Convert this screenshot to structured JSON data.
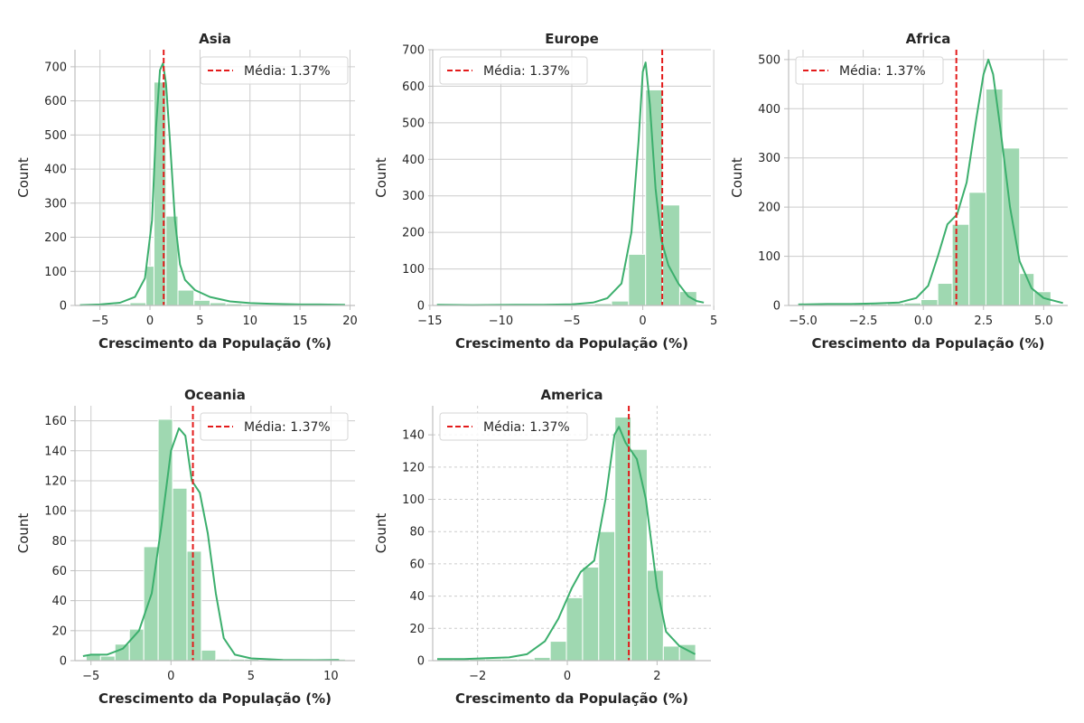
{
  "colors": {
    "bar": "#9fd8b1",
    "kde": "#3caf6d",
    "mean": "#e31b1b",
    "grid": "#cccccc",
    "axis": "#bdbdbd"
  },
  "chart_data": [
    {
      "type": "bar",
      "title": "Asia",
      "xlabel": "Crescimento da População (%)",
      "ylabel": "Count",
      "xlim": [
        -7.5,
        20.5
      ],
      "ylim": [
        0,
        750
      ],
      "xticks": [
        -5,
        0,
        5,
        10,
        15,
        20
      ],
      "yticks": [
        0,
        100,
        200,
        300,
        400,
        500,
        600,
        700
      ],
      "grid": "solid",
      "bin_edges": [
        -6.8,
        -5.2,
        -3.6,
        -2.0,
        -0.4,
        0.4,
        1.6,
        2.8,
        4.4,
        6.0,
        7.6,
        9.2,
        10.8,
        12.4,
        14.0,
        15.6,
        17.2,
        18.8,
        19.6
      ],
      "counts": [
        2,
        3,
        4,
        8,
        115,
        655,
        262,
        45,
        15,
        8,
        5,
        3,
        2,
        2,
        2,
        2,
        2,
        2
      ],
      "kde": [
        [
          -7,
          1
        ],
        [
          -5,
          3
        ],
        [
          -3,
          8
        ],
        [
          -1.5,
          25
        ],
        [
          -0.5,
          80
        ],
        [
          0.2,
          250
        ],
        [
          0.6,
          520
        ],
        [
          1.0,
          690
        ],
        [
          1.3,
          710
        ],
        [
          1.6,
          650
        ],
        [
          2.0,
          480
        ],
        [
          2.5,
          250
        ],
        [
          3.0,
          120
        ],
        [
          3.5,
          75
        ],
        [
          4.5,
          45
        ],
        [
          6,
          25
        ],
        [
          8,
          12
        ],
        [
          10,
          7
        ],
        [
          12,
          5
        ],
        [
          15,
          3
        ],
        [
          17,
          3
        ],
        [
          19.5,
          2
        ]
      ],
      "mean": 1.37,
      "legend": "Média: 1.37%",
      "legend_loc": "upper right"
    },
    {
      "type": "bar",
      "title": "Europe",
      "xlabel": "Crescimento da População (%)",
      "ylabel": "Count",
      "xlim": [
        -14.8,
        4.8
      ],
      "ylim": [
        0,
        700
      ],
      "xticks": [
        -15,
        -10,
        -5,
        0,
        5
      ],
      "yticks": [
        0,
        100,
        200,
        300,
        400,
        500,
        600,
        700
      ],
      "grid": "solid",
      "bin_edges": [
        -14.2,
        -13.0,
        -11.8,
        -10.6,
        -9.4,
        -8.2,
        -7.0,
        -5.8,
        -4.6,
        -3.4,
        -2.2,
        -1.0,
        0.2,
        1.4,
        2.6,
        3.8
      ],
      "counts": [
        2,
        1,
        1,
        1,
        2,
        2,
        2,
        3,
        3,
        5,
        12,
        140,
        590,
        275,
        38
      ],
      "kde": [
        [
          -14.5,
          2
        ],
        [
          -12,
          1
        ],
        [
          -9,
          2
        ],
        [
          -7,
          2
        ],
        [
          -5,
          3
        ],
        [
          -3.5,
          8
        ],
        [
          -2.5,
          20
        ],
        [
          -1.5,
          60
        ],
        [
          -0.8,
          200
        ],
        [
          -0.3,
          450
        ],
        [
          0,
          640
        ],
        [
          0.2,
          665
        ],
        [
          0.5,
          550
        ],
        [
          0.9,
          320
        ],
        [
          1.3,
          180
        ],
        [
          1.8,
          110
        ],
        [
          2.5,
          60
        ],
        [
          3.2,
          25
        ],
        [
          3.8,
          12
        ],
        [
          4.3,
          8
        ]
      ],
      "mean": 1.37,
      "legend": "Média: 1.37%",
      "legend_loc": "upper left"
    },
    {
      "type": "bar",
      "title": "Africa",
      "xlabel": "Crescimento da População (%)",
      "ylabel": "Count",
      "xlim": [
        -5.6,
        6.0
      ],
      "ylim": [
        0,
        520
      ],
      "xticks": [
        -5.0,
        -2.5,
        0.0,
        2.5,
        5.0
      ],
      "yticks": [
        0,
        100,
        200,
        300,
        400,
        500
      ],
      "grid": "solid",
      "bin_edges": [
        -5.0,
        -4.3,
        -3.6,
        -2.9,
        -2.2,
        -1.5,
        -0.8,
        -0.1,
        0.6,
        1.2,
        1.9,
        2.6,
        3.3,
        4.0,
        4.6,
        5.3
      ],
      "counts": [
        2,
        2,
        2,
        3,
        3,
        4,
        5,
        12,
        45,
        165,
        230,
        440,
        320,
        65,
        28
      ],
      "kde": [
        [
          -5.2,
          2
        ],
        [
          -4,
          3
        ],
        [
          -3,
          3
        ],
        [
          -2,
          4
        ],
        [
          -1,
          6
        ],
        [
          -0.3,
          15
        ],
        [
          0.2,
          40
        ],
        [
          0.6,
          100
        ],
        [
          1.0,
          165
        ],
        [
          1.4,
          185
        ],
        [
          1.8,
          250
        ],
        [
          2.2,
          380
        ],
        [
          2.5,
          470
        ],
        [
          2.7,
          500
        ],
        [
          2.9,
          470
        ],
        [
          3.2,
          360
        ],
        [
          3.6,
          200
        ],
        [
          4.0,
          90
        ],
        [
          4.5,
          35
        ],
        [
          5.0,
          15
        ],
        [
          5.8,
          5
        ]
      ],
      "mean": 1.37,
      "legend": "Média: 1.37%",
      "legend_loc": "upper left"
    },
    {
      "type": "bar",
      "title": "Oceania",
      "xlabel": "Crescimento da População (%)",
      "ylabel": "Count",
      "xlim": [
        -6.0,
        11.5
      ],
      "ylim": [
        0,
        170
      ],
      "xticks": [
        -5,
        0,
        5,
        10
      ],
      "yticks": [
        0,
        20,
        40,
        60,
        80,
        100,
        120,
        140,
        160
      ],
      "grid": "solid",
      "bin_edges": [
        -5.3,
        -4.4,
        -3.5,
        -2.6,
        -1.7,
        -0.8,
        0.1,
        1.0,
        1.9,
        2.8,
        3.7,
        4.6,
        5.5,
        6.4,
        7.3,
        8.2,
        9.1,
        10.0,
        10.9
      ],
      "counts": [
        4,
        3,
        11,
        21,
        76,
        161,
        115,
        73,
        7,
        1,
        1,
        1,
        0,
        0,
        0,
        0,
        0,
        1
      ],
      "kde": [
        [
          -5.5,
          3
        ],
        [
          -5,
          4
        ],
        [
          -4,
          4
        ],
        [
          -3,
          8
        ],
        [
          -2,
          20
        ],
        [
          -1.2,
          45
        ],
        [
          -0.6,
          90
        ],
        [
          0,
          140
        ],
        [
          0.5,
          155
        ],
        [
          0.9,
          150
        ],
        [
          1.3,
          120
        ],
        [
          1.8,
          112
        ],
        [
          2.3,
          85
        ],
        [
          2.8,
          45
        ],
        [
          3.3,
          15
        ],
        [
          4,
          4
        ],
        [
          5,
          1.5
        ],
        [
          7,
          0.5
        ],
        [
          9,
          0.3
        ],
        [
          10.5,
          0.5
        ]
      ],
      "mean": 1.37,
      "legend": "Média: 1.37%",
      "legend_loc": "upper right"
    },
    {
      "type": "bar",
      "title": "America",
      "xlabel": "Crescimento da População (%)",
      "ylabel": "Count",
      "xlim": [
        -3.0,
        3.2
      ],
      "ylim": [
        0,
        158
      ],
      "xticks": [
        -2,
        0,
        2
      ],
      "yticks": [
        0,
        20,
        40,
        60,
        80,
        100,
        120,
        140
      ],
      "grid": "dashed",
      "bin_edges": [
        -2.9,
        -2.54,
        -2.18,
        -1.82,
        -1.46,
        -1.1,
        -0.74,
        -0.38,
        -0.02,
        0.34,
        0.7,
        1.06,
        1.42,
        1.78,
        2.14,
        2.5,
        2.86
      ],
      "counts": [
        1,
        1,
        1,
        1,
        1,
        1,
        2,
        12,
        39,
        58,
        80,
        151,
        131,
        56,
        9,
        10
      ],
      "kde": [
        [
          -2.9,
          1
        ],
        [
          -2.3,
          1
        ],
        [
          -1.8,
          1.5
        ],
        [
          -1.3,
          2
        ],
        [
          -0.9,
          4
        ],
        [
          -0.5,
          12
        ],
        [
          -0.2,
          26
        ],
        [
          0.1,
          45
        ],
        [
          0.3,
          55
        ],
        [
          0.6,
          62
        ],
        [
          0.85,
          100
        ],
        [
          1.05,
          140
        ],
        [
          1.15,
          145
        ],
        [
          1.3,
          135
        ],
        [
          1.55,
          125
        ],
        [
          1.75,
          100
        ],
        [
          2.0,
          45
        ],
        [
          2.2,
          18
        ],
        [
          2.5,
          9
        ],
        [
          2.85,
          4
        ]
      ],
      "mean": 1.37,
      "legend": "Média: 1.37%",
      "legend_loc": "upper left"
    }
  ]
}
